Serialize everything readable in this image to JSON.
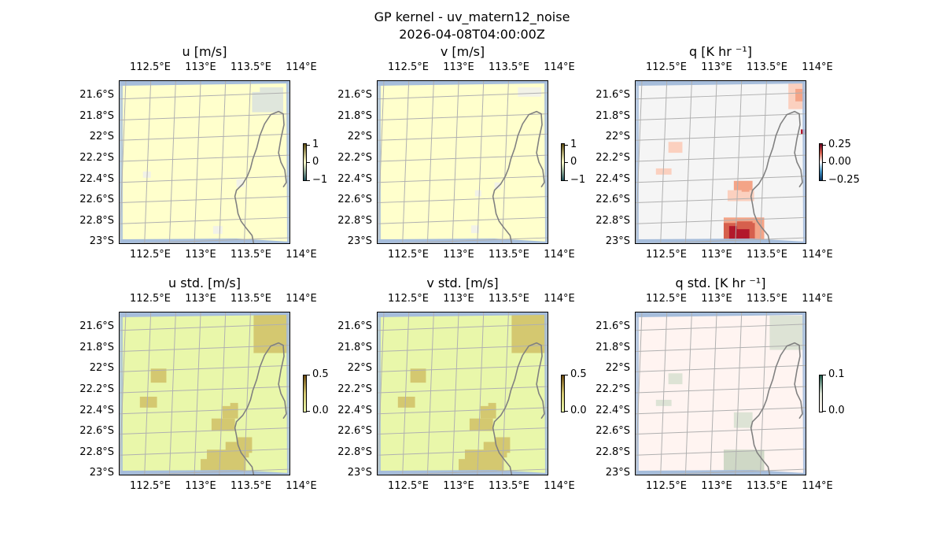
{
  "figure": {
    "title_line1": "GP kernel - uv_matern12_noise",
    "title_line2": "2026-04-08T04:00:00Z"
  },
  "axes": {
    "lon_ticks": [
      "112.5°E",
      "113°E",
      "113.5°E",
      "114°E"
    ],
    "lat_ticks": [
      "21.6°S",
      "21.8°S",
      "22°S",
      "22.2°S",
      "22.4°S",
      "22.6°S",
      "22.8°S",
      "23°S"
    ],
    "lon_range": [
      112.5,
      114.1
    ],
    "lat_range": [
      -23.05,
      -21.45
    ]
  },
  "panels": [
    {
      "id": "u",
      "title": "u [m/s]",
      "colorbar_ticks": [
        "1",
        "0",
        "−1"
      ],
      "colormap": "diverging-yellow",
      "colors": [
        "#ffffcc",
        "#f2f2e8",
        "#dfe6dc"
      ]
    },
    {
      "id": "v",
      "title": "v [m/s]",
      "colorbar_ticks": [
        "1",
        "0",
        "−1"
      ],
      "colormap": "diverging-yellow",
      "colors": [
        "#ffffcc",
        "#f2f2e8"
      ]
    },
    {
      "id": "q",
      "title": "q [K hr ⁻¹]",
      "colorbar_ticks": [
        "0.25",
        "0.00",
        "−0.25"
      ],
      "colormap": "RdBu_r",
      "colors": [
        "#f5f5f5",
        "#fbd0bf",
        "#f4a487",
        "#d6604d",
        "#b2182b"
      ]
    },
    {
      "id": "u_std",
      "title": "u std. [m/s]",
      "colorbar_ticks": [
        "0.5",
        "0.0"
      ],
      "colormap": "yellow-olive",
      "colors": [
        "#e9f7aa",
        "#d4c870"
      ]
    },
    {
      "id": "v_std",
      "title": "v std. [m/s]",
      "colorbar_ticks": [
        "0.5",
        "0.0"
      ],
      "colormap": "yellow-olive",
      "colors": [
        "#e9f7aa",
        "#d4c870"
      ]
    },
    {
      "id": "q_std",
      "title": "q std. [K hr ⁻¹]",
      "colorbar_ticks": [
        "0.1",
        "0.0"
      ],
      "colormap": "pink-green",
      "colors": [
        "#fff4f1",
        "#dde3d5",
        "#cfd8c6"
      ]
    }
  ],
  "style": {
    "grid_color": "#b0b0b0",
    "coast_color": "#808080",
    "ocean_color": "#a6bddb"
  }
}
